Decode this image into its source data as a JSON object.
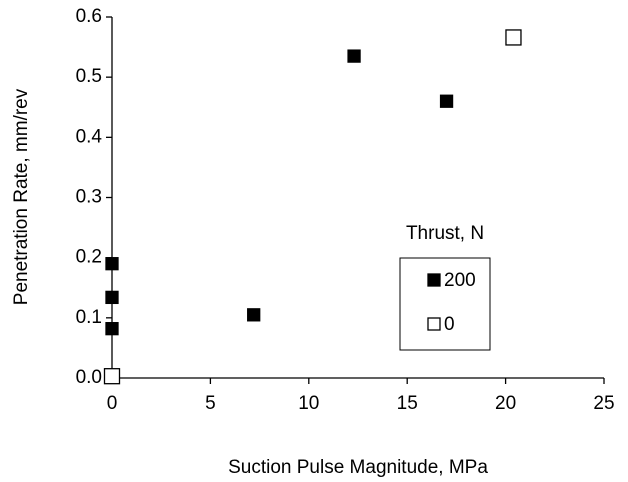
{
  "chart_data": {
    "type": "scatter",
    "x_label": "Suction Pulse Magnitude, MPa",
    "y_label": "Penetration Rate, mm/rev",
    "legend_title": "Thrust, N",
    "legend_position": "center right",
    "xlim": [
      0,
      25
    ],
    "ylim": [
      0,
      0.6
    ],
    "xticks": [
      0,
      5,
      10,
      15,
      20,
      25
    ],
    "yticks": [
      {
        "value": 0,
        "label": "0.0"
      },
      0.1,
      0.2,
      0.3,
      0.4,
      0.5,
      0.6
    ],
    "grid": false,
    "series": [
      {
        "name": "200",
        "color": "#000000",
        "filled": true,
        "x": [
          0,
          0,
          0,
          7.2,
          12.3,
          17.0
        ],
        "values": [
          0.19,
          0.134,
          0.082,
          0.105,
          0.535,
          0.46
        ]
      },
      {
        "name": "0",
        "color": "#000000",
        "filled": false,
        "x": [
          0,
          20.4
        ],
        "values": [
          0.003,
          0.566
        ]
      }
    ]
  }
}
